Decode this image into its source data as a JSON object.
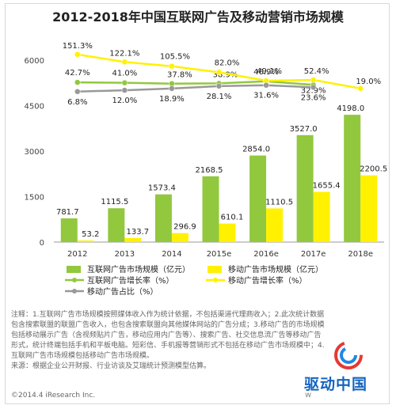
{
  "title": "2012-2018年中国互联网广告及移动营销市场规模",
  "chart_data": {
    "type": "bar",
    "title": "2012-2018年中国互联网广告及移动营销市场规模",
    "categories": [
      "2012",
      "2013",
      "2014",
      "2015e",
      "2016e",
      "2017e",
      "2018e"
    ],
    "ylim": [
      0,
      6000
    ],
    "yticks": [
      "0",
      "1500",
      "3000",
      "4500",
      "6000"
    ],
    "grid": false,
    "legend_position": "bottom",
    "series": [
      {
        "name": "互联网广告市场规模（亿元）",
        "kind": "bar",
        "color": "#92c83e",
        "values": [
          781.7,
          1115.5,
          1573.4,
          2168.5,
          2854.0,
          3527.0,
          4198.0
        ],
        "labels": [
          "781.7",
          "1115.5",
          "1573.4",
          "2168.5",
          "2854.0",
          "3527.0",
          "4198.0"
        ]
      },
      {
        "name": "移动广告市场规模（亿元）",
        "kind": "bar",
        "color": "#fff100",
        "values": [
          53.2,
          133.7,
          296.9,
          610.1,
          1110.5,
          1655.4,
          2200.5
        ],
        "labels": [
          "53.2",
          "133.7",
          "296.9",
          "610.1",
          "1110.5",
          "1655.4",
          "2200.5"
        ]
      },
      {
        "name": "互联网广告增长率（%）",
        "kind": "line",
        "color": "#92c83e",
        "values": [
          42.7,
          41.0,
          37.8,
          38.9,
          46.9,
          32.9,
          null
        ],
        "labels": [
          "42.7%",
          "41.0%",
          "37.8%",
          "38.9%",
          "46.9%",
          "32.9%",
          ""
        ]
      },
      {
        "name": "移动广告增长率（%）",
        "kind": "line",
        "color": "#fff100",
        "values": [
          151.3,
          122.1,
          105.5,
          82.0,
          49.1,
          52.4,
          19.0
        ],
        "labels": [
          "151.3%",
          "122.1%",
          "105.5%",
          "82.0%",
          "49.1%",
          "52.4%",
          "19.0%"
        ]
      },
      {
        "name": "移动广告占比（%）",
        "kind": "line",
        "color": "#999999",
        "values": [
          6.8,
          12.0,
          18.9,
          28.1,
          31.6,
          23.6,
          null
        ],
        "labels": [
          "6.8%",
          "12.0%",
          "18.9%",
          "28.1%",
          "31.6%",
          "23.6%",
          ""
        ]
      }
    ]
  },
  "notes": [
    "注释：1.互联网广告市场规模按照媒体收入作为统计依据，不包括渠道代理商收入；2.此次统计数据",
    "包含搜索联盟的联盟广告收入，也包含搜索联盟向其他媒体网站的广告分成；3.移动广告的市场规模",
    "包括移动展示广告（含视频贴片广告，移动应用内广告等）、搜索广告、社交信息流广告等移动广告",
    "形式，统计终端包括手机和平板电脑。短彩信、手机报等营销形式不包括在移动广告市场规模中；4.",
    "互联网广告市场规模包括移动广告市场规模。",
    "来源：根据企业公开财报、行业访谈及艾瑞统计预测模型估算。"
  ],
  "footer": "©2014.4 iResearch Inc.",
  "footer_right": "w",
  "watermark": "驱动中国",
  "colors": {
    "internet_bar": "#92c83e",
    "mobile_bar": "#fff100",
    "share_line": "#999999",
    "axis": "#999999"
  }
}
